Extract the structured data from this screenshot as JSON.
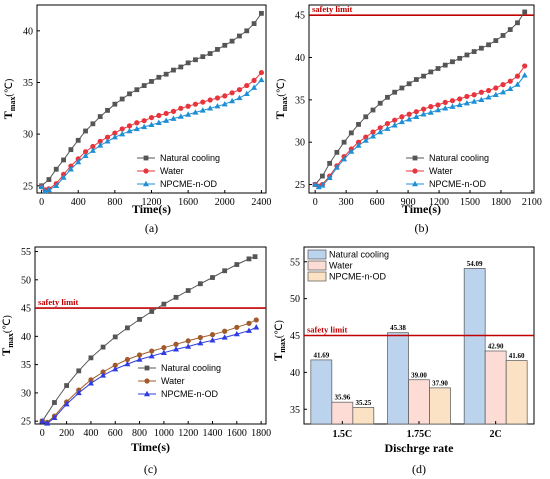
{
  "colors": {
    "natural": "#555555",
    "water": "#e8353d",
    "npcme": "#1e8fd5",
    "water_c": "#a05a2c",
    "npcme_c": "#2f3de0",
    "safety": "#c00000",
    "bar_natural": "#bcd3ee",
    "bar_water": "#fcdcd4",
    "bar_npcme": "#fbe2c4"
  },
  "chart_data": [
    {
      "id": "a",
      "type": "line",
      "panel_label": "(a)",
      "xlabel": "Time(s)",
      "ylabel_main": "T",
      "ylabel_sub": "max",
      "ylabel_unit": "(℃)",
      "xlim": [
        -50,
        2450
      ],
      "ylim": [
        24.3,
        42.5
      ],
      "xticks": [
        0,
        400,
        800,
        1200,
        1600,
        2000,
        2400
      ],
      "yticks": [
        25,
        30,
        35,
        40
      ],
      "legend_position": "lower-right",
      "series": [
        {
          "name": "Natural cooling",
          "color_key": "natural",
          "marker": "square",
          "x": [
            0,
            80,
            160,
            240,
            320,
            400,
            480,
            560,
            640,
            720,
            800,
            880,
            960,
            1040,
            1120,
            1200,
            1280,
            1360,
            1440,
            1520,
            1600,
            1680,
            1760,
            1840,
            1920,
            2000,
            2080,
            2160,
            2240,
            2320,
            2400
          ],
          "y": [
            25.0,
            25.6,
            26.6,
            27.5,
            28.5,
            29.4,
            30.3,
            31.0,
            31.7,
            32.3,
            32.9,
            33.4,
            33.9,
            34.3,
            34.7,
            35.1,
            35.5,
            35.8,
            36.2,
            36.5,
            36.9,
            37.2,
            37.5,
            37.8,
            38.2,
            38.6,
            39.0,
            39.5,
            40.0,
            40.7,
            41.69
          ]
        },
        {
          "name": "Water",
          "color_key": "water",
          "marker": "circle",
          "x": [
            0,
            40,
            80,
            160,
            240,
            320,
            400,
            480,
            560,
            640,
            720,
            800,
            880,
            960,
            1040,
            1120,
            1200,
            1280,
            1360,
            1440,
            1520,
            1600,
            1680,
            1760,
            1840,
            1920,
            2000,
            2080,
            2160,
            2240,
            2320,
            2400
          ],
          "y": [
            24.9,
            24.6,
            24.7,
            25.2,
            26.1,
            26.9,
            27.6,
            28.3,
            28.8,
            29.3,
            29.7,
            30.1,
            30.5,
            30.8,
            31.1,
            31.3,
            31.6,
            31.8,
            32.0,
            32.2,
            32.5,
            32.7,
            32.9,
            33.1,
            33.3,
            33.5,
            33.7,
            34.0,
            34.3,
            34.7,
            35.2,
            35.96
          ]
        },
        {
          "name": "NPCME-n-OD",
          "color_key": "npcme",
          "marker": "triangle",
          "x": [
            0,
            40,
            80,
            160,
            240,
            320,
            400,
            480,
            560,
            640,
            720,
            800,
            880,
            960,
            1040,
            1120,
            1200,
            1280,
            1360,
            1440,
            1520,
            1600,
            1680,
            1760,
            1840,
            1920,
            2000,
            2080,
            2160,
            2240,
            2320,
            2400
          ],
          "y": [
            24.9,
            24.5,
            24.6,
            25.0,
            25.8,
            26.6,
            27.3,
            27.9,
            28.4,
            28.9,
            29.3,
            29.7,
            30.0,
            30.3,
            30.5,
            30.7,
            30.9,
            31.1,
            31.3,
            31.5,
            31.7,
            31.9,
            32.1,
            32.3,
            32.5,
            32.7,
            32.9,
            33.2,
            33.5,
            33.9,
            34.5,
            35.25
          ]
        }
      ]
    },
    {
      "id": "b",
      "type": "line",
      "panel_label": "(b)",
      "xlabel": "Time(s)",
      "ylabel_main": "T",
      "ylabel_sub": "max",
      "ylabel_unit": "(℃)",
      "xlim": [
        -60,
        2120
      ],
      "ylim": [
        24.0,
        46.2
      ],
      "xticks": [
        0,
        300,
        600,
        900,
        1200,
        1500,
        1800,
        2100
      ],
      "yticks": [
        25,
        30,
        35,
        40,
        45
      ],
      "legend_position": "lower-right",
      "safety_limit": {
        "label": "safety limit",
        "value": 45
      },
      "series": [
        {
          "name": "Natural cooling",
          "color_key": "natural",
          "marker": "square",
          "x": [
            0,
            70,
            140,
            210,
            280,
            350,
            420,
            490,
            560,
            630,
            700,
            770,
            840,
            910,
            980,
            1050,
            1120,
            1190,
            1260,
            1330,
            1400,
            1470,
            1540,
            1610,
            1680,
            1750,
            1820,
            1890,
            1960,
            2030
          ],
          "y": [
            25.0,
            26.0,
            27.5,
            28.8,
            30.0,
            31.1,
            32.1,
            33.0,
            33.8,
            34.6,
            35.3,
            35.9,
            36.4,
            36.9,
            37.4,
            37.8,
            38.3,
            38.7,
            39.1,
            39.5,
            39.9,
            40.3,
            40.7,
            41.1,
            41.5,
            42.0,
            42.6,
            43.3,
            44.1,
            45.38
          ]
        },
        {
          "name": "Water",
          "color_key": "water",
          "marker": "circle",
          "x": [
            0,
            35,
            70,
            140,
            210,
            280,
            350,
            420,
            490,
            560,
            630,
            700,
            770,
            840,
            910,
            980,
            1050,
            1120,
            1190,
            1260,
            1330,
            1400,
            1470,
            1540,
            1610,
            1680,
            1750,
            1820,
            1890,
            1960,
            2030
          ],
          "y": [
            25.0,
            24.8,
            25.0,
            26.0,
            27.2,
            28.3,
            29.2,
            30.0,
            30.6,
            31.2,
            31.7,
            32.2,
            32.6,
            33.0,
            33.3,
            33.6,
            33.9,
            34.2,
            34.4,
            34.7,
            34.9,
            35.1,
            35.4,
            35.6,
            35.9,
            36.1,
            36.4,
            36.8,
            37.2,
            37.8,
            39.0
          ]
        },
        {
          "name": "NPCME-n-OD",
          "color_key": "npcme",
          "marker": "triangle",
          "x": [
            0,
            35,
            70,
            140,
            210,
            280,
            350,
            420,
            490,
            560,
            630,
            700,
            770,
            840,
            910,
            980,
            1050,
            1120,
            1190,
            1260,
            1330,
            1400,
            1470,
            1540,
            1610,
            1680,
            1750,
            1820,
            1890,
            1960,
            2030
          ],
          "y": [
            25.0,
            24.7,
            24.9,
            25.8,
            27.0,
            28.0,
            28.9,
            29.6,
            30.2,
            30.7,
            31.2,
            31.6,
            32.0,
            32.4,
            32.7,
            33.0,
            33.3,
            33.5,
            33.8,
            34.0,
            34.2,
            34.4,
            34.6,
            34.8,
            35.0,
            35.3,
            35.6,
            35.9,
            36.3,
            36.8,
            37.9
          ]
        }
      ]
    },
    {
      "id": "c",
      "type": "line",
      "panel_label": "(c)",
      "xlabel": "Time(s)",
      "ylabel_main": "T",
      "ylabel_sub": "max",
      "ylabel_unit": "(℃)",
      "xlim": [
        -60,
        1840
      ],
      "ylim": [
        24.5,
        55.8
      ],
      "xticks": [
        0,
        200,
        400,
        600,
        800,
        1000,
        1200,
        1400,
        1600,
        1800
      ],
      "yticks": [
        25,
        30,
        35,
        40,
        45,
        50,
        55
      ],
      "legend_position": "lower-right",
      "safety_limit": {
        "label": "safety limit",
        "value": 45
      },
      "series": [
        {
          "name": "Natural cooling",
          "color_key": "natural",
          "marker": "square",
          "x": [
            0,
            100,
            200,
            300,
            400,
            500,
            600,
            700,
            800,
            900,
            1000,
            1100,
            1200,
            1300,
            1400,
            1500,
            1600,
            1700,
            1750
          ],
          "y": [
            25.0,
            28.3,
            31.3,
            33.9,
            36.2,
            38.1,
            39.9,
            41.5,
            43.0,
            44.4,
            45.7,
            46.9,
            48.1,
            49.3,
            50.4,
            51.6,
            52.7,
            53.7,
            54.09
          ]
        },
        {
          "name": "Water",
          "color_key": "water_c",
          "marker": "circle",
          "x": [
            0,
            40,
            100,
            200,
            300,
            400,
            500,
            600,
            700,
            800,
            900,
            1000,
            1100,
            1200,
            1300,
            1400,
            1500,
            1600,
            1700,
            1760
          ],
          "y": [
            25.0,
            24.8,
            25.9,
            28.4,
            30.5,
            32.3,
            33.7,
            34.9,
            35.9,
            36.7,
            37.4,
            38.0,
            38.6,
            39.2,
            39.8,
            40.3,
            40.9,
            41.6,
            42.3,
            42.9
          ]
        },
        {
          "name": "NPCME-n-OD",
          "color_key": "npcme_c",
          "marker": "triangle",
          "x": [
            0,
            40,
            100,
            200,
            300,
            400,
            500,
            600,
            700,
            800,
            900,
            1000,
            1100,
            1200,
            1300,
            1400,
            1500,
            1600,
            1700,
            1760
          ],
          "y": [
            25.0,
            24.6,
            25.6,
            28.0,
            30.0,
            31.7,
            33.1,
            34.2,
            35.1,
            35.9,
            36.5,
            37.1,
            37.7,
            38.2,
            38.8,
            39.3,
            39.8,
            40.4,
            41.0,
            41.6
          ]
        }
      ]
    },
    {
      "id": "d",
      "type": "bar",
      "panel_label": "(d)",
      "xlabel": "Dischrge rate",
      "ylabel_main": "T",
      "ylabel_sub": "max",
      "ylabel_unit": "(℃)",
      "ylim": [
        33,
        57
      ],
      "yticks": [
        35,
        40,
        45,
        50,
        55
      ],
      "categories": [
        "1.5C",
        "1.75C",
        "2C"
      ],
      "legend_position": "top-left",
      "safety_limit": {
        "label": "safety limit",
        "value": 45
      },
      "series": [
        {
          "name": "Natural cooling",
          "color_key": "bar_natural",
          "values": [
            41.69,
            45.38,
            54.09
          ],
          "labels": [
            "41.69",
            "45.38",
            "54.09"
          ]
        },
        {
          "name": "Water",
          "color_key": "bar_water",
          "values": [
            35.96,
            39.0,
            42.9
          ],
          "labels": [
            "35.96",
            "39.00",
            "42.90"
          ]
        },
        {
          "name": "NPCME-n-OD",
          "color_key": "bar_npcme",
          "values": [
            35.25,
            37.9,
            41.6
          ],
          "labels": [
            "35.25",
            "37.90",
            "41.60"
          ]
        }
      ]
    }
  ]
}
